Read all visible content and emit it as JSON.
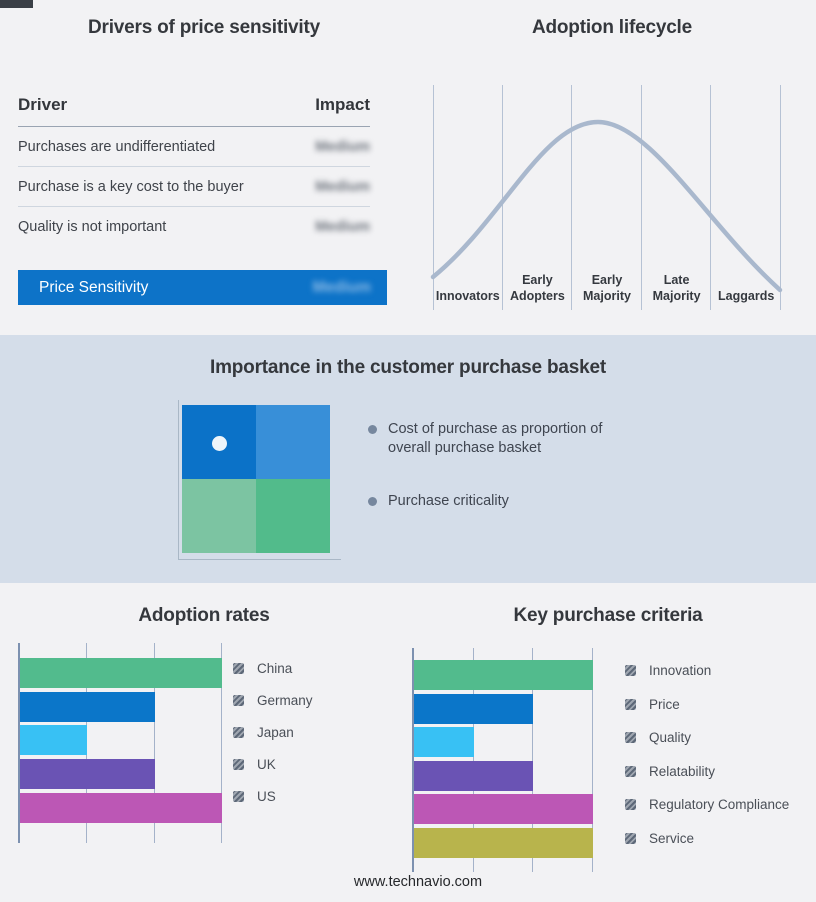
{
  "drivers_panel": {
    "title": "Drivers of price sensitivity",
    "columns": {
      "driver": "Driver",
      "impact": "Impact"
    },
    "rows": [
      {
        "driver": "Purchases are undifferentiated",
        "impact": "Medium"
      },
      {
        "driver": "Purchase is a key cost to the buyer",
        "impact": "Medium"
      },
      {
        "driver": "Quality is not important",
        "impact": "Medium"
      }
    ],
    "highlight_row": {
      "driver": "Price Sensitivity",
      "impact": "Medium"
    },
    "highlight_color": "#0d73c8"
  },
  "lifecycle_panel": {
    "title": "Adoption lifecycle",
    "stages": [
      [
        "Innovators"
      ],
      [
        "Early",
        "Adopters"
      ],
      [
        "Early",
        "Majority"
      ],
      [
        "Late",
        "Majority"
      ],
      [
        "Laggards"
      ]
    ],
    "curve_color": "#a9b8cd"
  },
  "basket_band": {
    "title": "Importance in the customer purchase basket",
    "bullets": [
      "Cost of purchase as proportion of overall purchase basket",
      "Purchase criticality"
    ],
    "quadrant_colors": {
      "top_left": "#0b72c8",
      "top_right": "#388fd8",
      "bottom_left": "#7cc4a2",
      "bottom_right": "#52bb8b"
    },
    "background": "#d4dde9"
  },
  "footer": {
    "url": "www.technavio.com"
  },
  "chart_data": [
    {
      "type": "line",
      "title": "Adoption lifecycle",
      "categories": [
        "Innovators",
        "Early Adopters",
        "Early Majority",
        "Late Majority",
        "Laggards"
      ],
      "values": [
        0.25,
        0.7,
        1.0,
        0.7,
        0.25
      ],
      "note": "bell-shaped adoption curve peaking at Early Majority; no numeric axis shown",
      "grid": true,
      "legend_position": "none"
    },
    {
      "type": "bar",
      "orientation": "horizontal",
      "title": "Adoption rates",
      "categories": [
        "China",
        "Germany",
        "Japan",
        "UK",
        "US"
      ],
      "values": [
        3,
        2,
        1,
        2,
        3
      ],
      "xlabel": "",
      "ylabel": "",
      "xlim": [
        0,
        3
      ],
      "note": "values in unlabeled gridline units",
      "colors": [
        "#52bb8d",
        "#0b76c9",
        "#38c1f4",
        "#6a53b4",
        "#bc57b5"
      ],
      "grid": true,
      "legend_position": "right"
    },
    {
      "type": "bar",
      "orientation": "horizontal",
      "title": "Key purchase criteria",
      "categories": [
        "Innovation",
        "Price",
        "Quality",
        "Relatability",
        "Regulatory Compliance",
        "Service"
      ],
      "values": [
        3,
        2,
        1,
        2,
        3,
        3
      ],
      "xlabel": "",
      "ylabel": "",
      "xlim": [
        0,
        3
      ],
      "note": "values in unlabeled gridline units",
      "colors": [
        "#52bb8d",
        "#0b76c9",
        "#38c1f4",
        "#6a53b4",
        "#bc57b5",
        "#b8b44c"
      ],
      "grid": true,
      "legend_position": "right"
    }
  ]
}
